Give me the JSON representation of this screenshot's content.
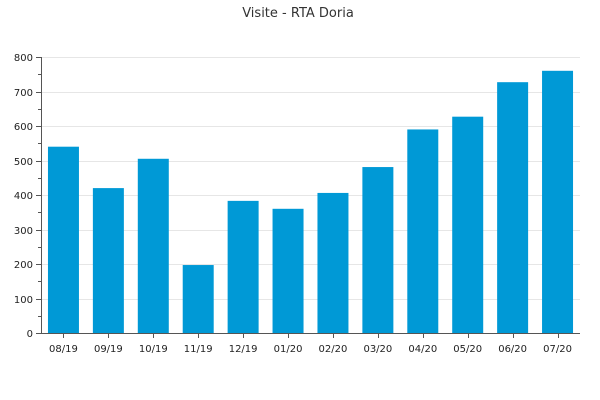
{
  "chart_data": {
    "type": "bar",
    "title": "Visite - RTA Doria",
    "xlabel": "",
    "ylabel": "",
    "categories": [
      "08/19",
      "09/19",
      "10/19",
      "11/19",
      "12/19",
      "01/20",
      "02/20",
      "03/20",
      "04/20",
      "05/20",
      "06/20",
      "07/20"
    ],
    "values": [
      540,
      420,
      505,
      197,
      383,
      360,
      406,
      481,
      590,
      627,
      727,
      760
    ],
    "ylim": [
      0,
      800
    ],
    "yticks": [
      0,
      100,
      200,
      300,
      400,
      500,
      600,
      700,
      800
    ],
    "grid": true,
    "legend": "none",
    "colors": {
      "bar": "#0099d6",
      "grid": "#e6e6e6",
      "axis": "#555555"
    }
  }
}
